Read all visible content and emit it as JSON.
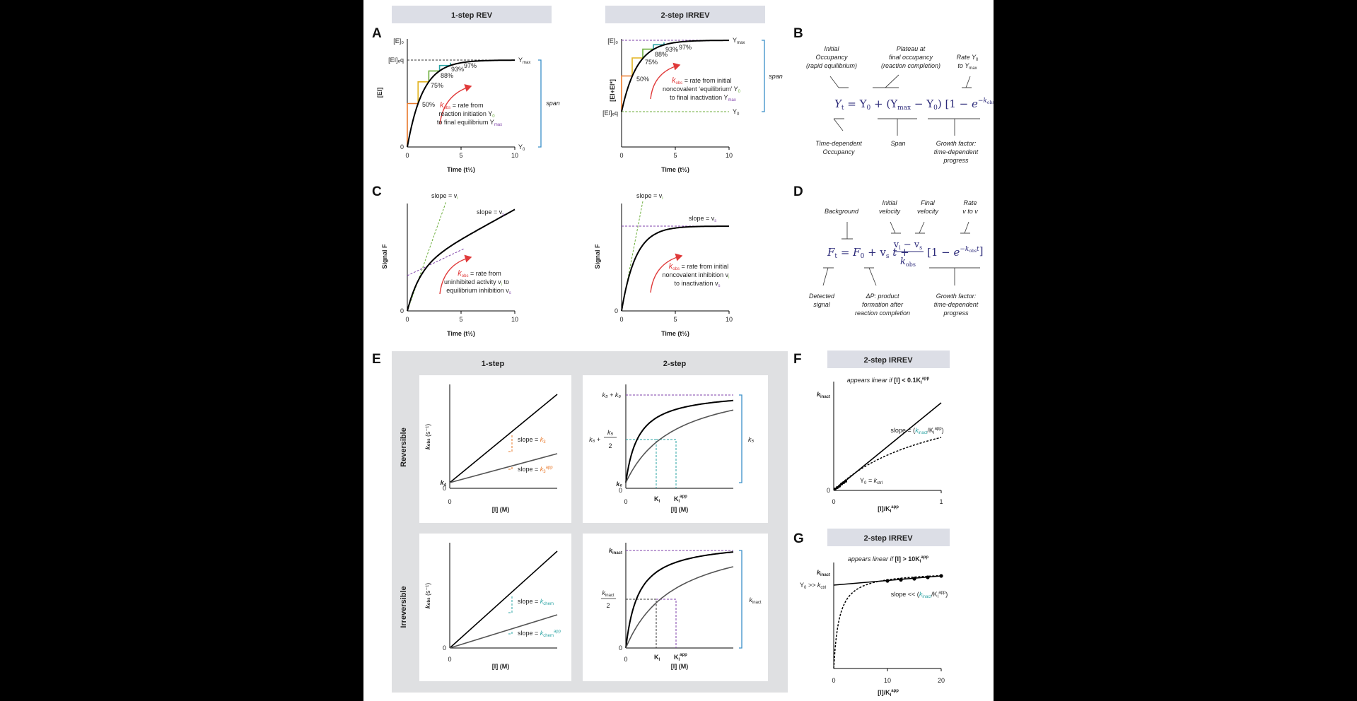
{
  "panel_letters": {
    "a": "A",
    "b": "B",
    "c": "C",
    "d": "D",
    "e": "E",
    "f": "F",
    "g": "G"
  },
  "headers": {
    "rev1": "1-step REV",
    "irrev2": "2-step IRREV",
    "f": "2-step IRREV",
    "g": "2-step IRREV",
    "e_left": "1-step",
    "e_right": "2-step"
  },
  "colors": {
    "orange": "#e8782a",
    "yellow": "#e3b320",
    "green": "#6cae3b",
    "teal": "#2aa3a3",
    "purple": "#7d3fa8",
    "blue": "#3a8fc8",
    "red": "#e03a3a",
    "navy": "#2d2b7a",
    "panel_e_bg": "#dfe0e2"
  },
  "panelA_left": {
    "yticks": {
      "e0": "[E]₀",
      "eieq": "[EI]ₑq",
      "zero": "0"
    },
    "ylabel": "[EI]",
    "xlabel": "Time (t½)",
    "xticks": [
      "0",
      "5",
      "10"
    ],
    "ymax": "Y",
    "ymax_sub": "max",
    "y0": "Y",
    "y0_sub": "0",
    "pct": [
      "50%",
      "75%",
      "88%",
      "93%",
      "97%"
    ],
    "span": "span",
    "kobs_k": "k",
    "kobs_sub": "obs",
    "desc1": " = rate from",
    "desc2": "reaction initiation Y",
    "desc2_sub": "0",
    "desc3": "to final equilibrium Y",
    "desc3_sub": "max"
  },
  "panelA_right": {
    "yticks": {
      "e0": "[E]₀",
      "eieq": "[EI]ₑq"
    },
    "ylabel": "[EI+EI*]",
    "xlabel": "Time (t½)",
    "xticks": [
      "0",
      "5",
      "10"
    ],
    "pct": [
      "50%",
      "75%",
      "88%",
      "93%",
      "97%"
    ],
    "span": "span",
    "desc1": " = rate from initial",
    "desc2": "noncovalent ‘equilibrium’ Y",
    "desc2_sub": "0",
    "desc3": "to final inactivation Y",
    "desc3_sub": "max"
  },
  "panelB": {
    "top1": [
      "Initial",
      "Occupancy",
      "(rapid equilibrium)"
    ],
    "top2": [
      "Plateau at",
      "final occupancy",
      "(reaction completion)"
    ],
    "top3": [
      "Rate Y",
      "to Y"
    ],
    "bot1": [
      "Time-dependent",
      "Occupancy"
    ],
    "bot2": [
      "Span"
    ],
    "bot3": [
      "Growth factor:",
      "time-dependent",
      "progress"
    ]
  },
  "panelC_left": {
    "ylabel": "Signal F",
    "xlabel": "Time (t½)",
    "xticks": [
      "0",
      "5",
      "10"
    ],
    "y0": "0",
    "slope_vi": "slope = v",
    "slope_vi_sub": "i",
    "slope_vs": "slope = v",
    "slope_vs_sub": "s",
    "desc1": " = rate from",
    "desc2": "uninhibited activity v",
    "desc2_sub": "i",
    "desc2_tail": " to",
    "desc3": "equilibrium inhibition v",
    "desc3_sub": "s"
  },
  "panelC_right": {
    "ylabel": "Signal F",
    "xlabel": "Time (t½)",
    "xticks": [
      "0",
      "5",
      "10"
    ],
    "y0": "0",
    "slope_vi": "slope = v",
    "slope_vi_sub": "i",
    "slope_vs": "slope = v",
    "slope_vs_sub": "s",
    "desc1": " = rate from initial",
    "desc2": "noncovalent inhibition v",
    "desc2_sub": "i",
    "desc3": "to inactivation v",
    "desc3_sub": "s"
  },
  "panelD": {
    "top1": [
      "Background"
    ],
    "top2": [
      "Initial",
      "velocity"
    ],
    "top3": [
      "Final",
      "velocity"
    ],
    "top4": [
      "Rate",
      "v to v"
    ],
    "bot1": [
      "Detected",
      "signal"
    ],
    "bot2": [
      "ΔP: product",
      "formation after",
      "reaction completion"
    ],
    "bot3": [
      "Growth factor:",
      "time-dependent",
      "progress"
    ]
  },
  "panelE": {
    "row_rev": "Reversible",
    "row_irrev": "Irreversible",
    "ylabel": "k",
    "ylabel_sub": "obs",
    "ylabel_unit": " (s⁻¹)",
    "xlabel": "[I] (M)",
    "zero": "0",
    "k4": "k",
    "k4_sub": "4",
    "slope_k3": "slope = ",
    "k3": "k",
    "k3_sub": "3",
    "slope_k3app": "slope = ",
    "k3app_sub": "3",
    "k3app_sup": "app",
    "k5k6": "k₅ + k₆",
    "k6half_a": "k₆ +",
    "k6half_num": "k₅",
    "k6half_den": "2",
    "k6": "k₆",
    "k5": "k₅",
    "Ki": "K",
    "Ki_sub": "I",
    "Kiapp_sup": "app",
    "slope_kchem": "slope = ",
    "kchem_sub": "chem",
    "kchemapp_sup": "app",
    "kinact": "k",
    "kinact_sub": "inact",
    "kinact_half_den": "2"
  },
  "panelF": {
    "note_a": "appears linear if ",
    "note_b": "[I]",
    "note_c": " < 0.1K",
    "note_d": "app",
    "kinact": "k",
    "kinact_sub": "inact",
    "slope_a": "slope = (",
    "slope_b": "k",
    "slope_b_sub": "inact",
    "slope_c": "/K",
    "slope_c_sub": "I",
    "slope_c_sup": "app",
    "slope_d": ")",
    "y0_a": "Y",
    "y0_sub": "0",
    "y0_b": " = k",
    "y0_c": "ctrl",
    "xlabel": "[I]/K",
    "xticks": [
      "0",
      "1"
    ],
    "y0tick": "0"
  },
  "panelG": {
    "note_a": "appears linear if ",
    "note_b": "[I]",
    "note_c": " > 10K",
    "note_d": "app",
    "kinact": "k",
    "kinact_sub": "inact",
    "y0_a": "Y",
    "y0_sub": "0",
    "y0_b": " >> k",
    "y0_c": "ctrl",
    "slope_a": "slope << (",
    "slope_b": "k",
    "slope_b_sub": "inact",
    "slope_c": "/K",
    "slope_c_sub": "I",
    "slope_c_sup": "app",
    "slope_d": ")",
    "xlabel": "[I]/K",
    "xticks": [
      "0",
      "10",
      "20"
    ]
  }
}
